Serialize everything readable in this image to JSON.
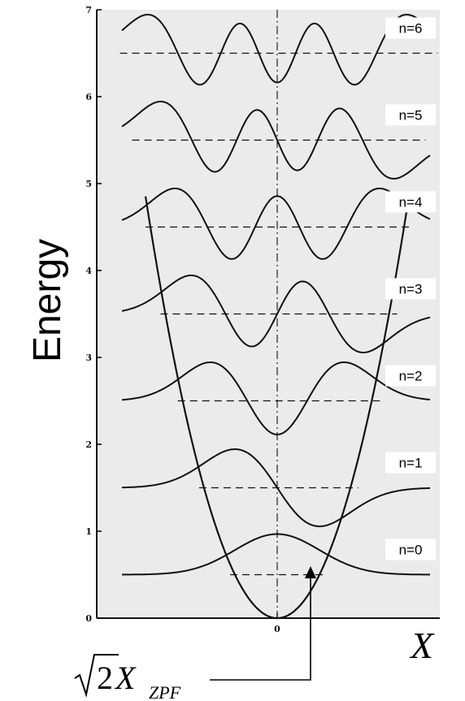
{
  "figure": {
    "y_axis_label": "Energy",
    "x_axis_label": "X",
    "zpf_annotation": {
      "sqrt_arg": "2",
      "symbol": "X",
      "subscript": "ZPF"
    },
    "level_labels": [
      "n=0",
      "n=1",
      "n=2",
      "n=3",
      "n=4",
      "n=5",
      "n=6"
    ],
    "colors": {
      "plot_background": "#ebebeb",
      "ink": "#111111",
      "label_box": "#ffffff"
    }
  },
  "chart_data": {
    "type": "line",
    "title": "",
    "xlabel": "X",
    "ylabel": "Energy",
    "ylim": [
      0,
      7
    ],
    "xlim": [
      -4.2,
      4.2
    ],
    "y_ticks": [
      "0",
      "1",
      "2",
      "3",
      "4",
      "5",
      "6",
      "7"
    ],
    "x_ticks": [
      "0"
    ],
    "potential": "parabola",
    "energy_levels": [
      0.5,
      1.5,
      2.5,
      3.5,
      4.5,
      5.5,
      6.5
    ],
    "series": [
      {
        "name": "n=0",
        "n": 0,
        "energy": 0.5
      },
      {
        "name": "n=1",
        "n": 1,
        "energy": 1.5
      },
      {
        "name": "n=2",
        "n": 2,
        "energy": 2.5
      },
      {
        "name": "n=3",
        "n": 3,
        "energy": 3.5
      },
      {
        "name": "n=4",
        "n": 4,
        "energy": 4.5
      },
      {
        "name": "n=5",
        "n": 5,
        "energy": 5.5
      },
      {
        "name": "n=6",
        "n": 6,
        "energy": 6.5
      }
    ]
  }
}
